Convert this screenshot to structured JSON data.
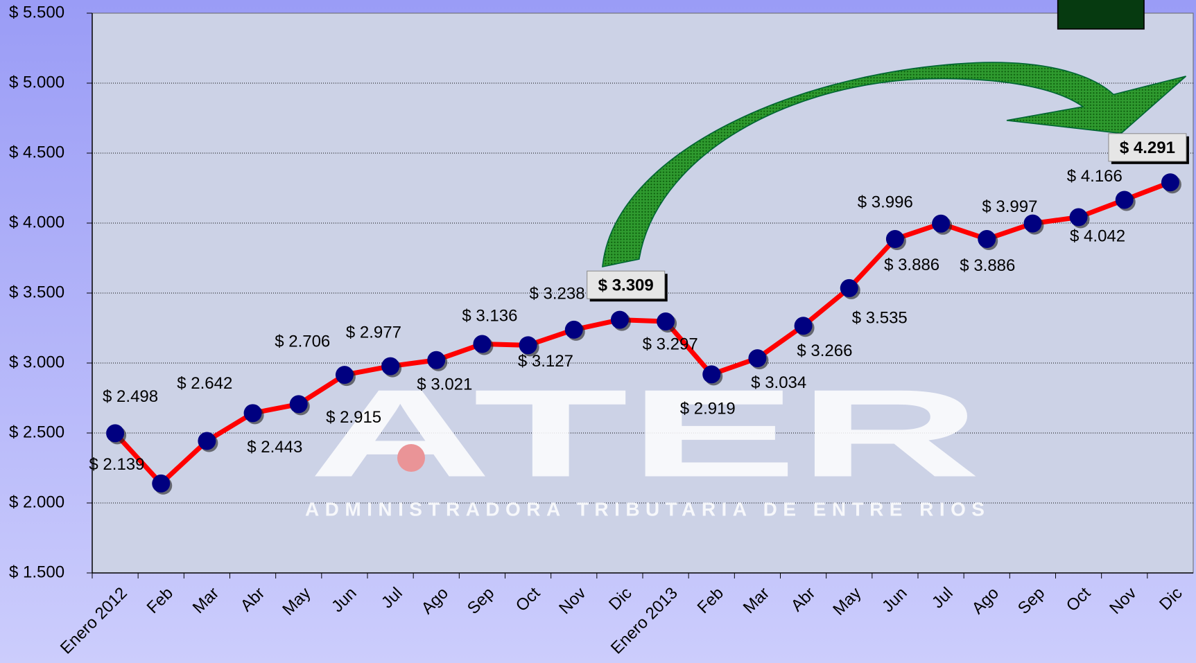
{
  "chart_data": {
    "type": "line",
    "categories": [
      "Enero 2012",
      "Feb",
      "Mar",
      "Abr",
      "May",
      "Jun",
      "Jul",
      "Ago",
      "Sep",
      "Oct",
      "Nov",
      "Dic",
      "Enero 2013",
      "Feb",
      "Mar",
      "Abr",
      "May",
      "Jun",
      "Jul",
      "Ago",
      "Sep",
      "Oct",
      "Nov",
      "Dic"
    ],
    "series": [
      {
        "color": "#ff0000",
        "marker_color": "#000080",
        "values": [
          2498,
          2139,
          2443,
          2642,
          2706,
          2915,
          2977,
          3021,
          3136,
          3127,
          3238,
          3309,
          3297,
          2919,
          3034,
          3266,
          3535,
          3886,
          3996,
          3886,
          3997,
          4042,
          4166,
          4291
        ],
        "value_labels": [
          "$ 2.498",
          "$ 2.139",
          "$ 2.443",
          "$ 2.642",
          "$ 2.706",
          "$ 2.915",
          "$ 2.977",
          "$ 3.021",
          "$ 3.136",
          "$ 3.127",
          "$ 3.238",
          "$ 3.309",
          "$ 3.297",
          "$ 2.919",
          "$ 3.034",
          "$ 3.266",
          "$ 3.535",
          "$ 3.886",
          "$ 3.996",
          "$ 3.886",
          "$ 3.997",
          "$ 4.042",
          "$ 4.166",
          "$ 4.291"
        ],
        "highlight_indices": [
          11,
          23
        ]
      }
    ],
    "ylim": [
      1500,
      5500
    ],
    "yticks": [
      {
        "value": 1500,
        "label": "$ 1.500"
      },
      {
        "value": 2000,
        "label": "$ 2.000"
      },
      {
        "value": 2500,
        "label": "$ 2.500"
      },
      {
        "value": 3000,
        "label": "$ 3.000"
      },
      {
        "value": 3500,
        "label": "$ 3.500"
      },
      {
        "value": 4000,
        "label": "$ 4.000"
      },
      {
        "value": 4500,
        "label": "$ 4.500"
      },
      {
        "value": 5000,
        "label": "$ 5.000"
      },
      {
        "value": 5500,
        "label": "$ 5.500"
      }
    ],
    "grid": true,
    "watermark": {
      "title": "ATER",
      "subtitle": "ADMINISTRADORA TRIBUTARIA DE ENTRE RIOS"
    }
  }
}
